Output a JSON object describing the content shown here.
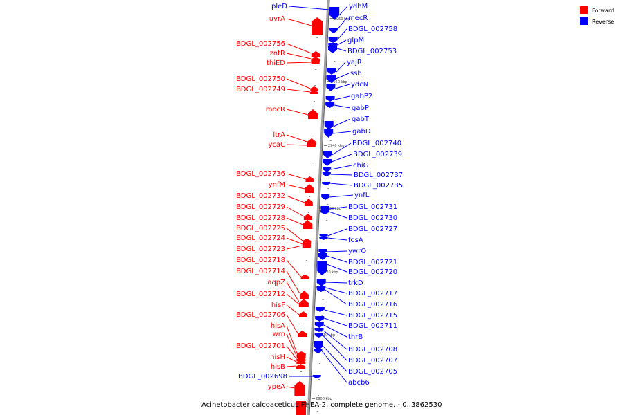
{
  "caption": "Acinetobacter calcoaceticus PHEA-2, complete genome. - 0..3862530",
  "legend": [
    {
      "label": "Forward",
      "color": "#ff0000"
    },
    {
      "label": "Reverse",
      "color": "#0000ff"
    }
  ],
  "colors": {
    "forward": "#ff0000",
    "reverse": "#0000ff",
    "backbone": "#a0a0a0"
  },
  "ticks": [
    "2960 kbp",
    "2950 kbp",
    "2940 kbp",
    "2930 kbp",
    "2920 kbp",
    "2910 kbp",
    "2900 kbp"
  ],
  "genes": {
    "forward": [
      "uvrA",
      "BDGL_002756",
      "zntR",
      "thiED",
      "BDGL_002750",
      "BDGL_002749",
      "mocR",
      "ltrA",
      "ycaC",
      "BDGL_002736",
      "ynfM",
      "BDGL_002732",
      "BDGL_002729",
      "BDGL_002728",
      "BDGL_002725",
      "BDGL_002724",
      "BDGL_002723",
      "BDGL_002718",
      "BDGL_002714",
      "aqpZ",
      "BDGL_002712",
      "hisF",
      "BDGL_002706",
      "hisA",
      "wrn",
      "BDGL_002701",
      "hisH",
      "hisB",
      "ypeA"
    ],
    "reverse": [
      "pleD",
      "ydhM",
      "mecR",
      "BDGL_002758",
      "glpM",
      "BDGL_002753",
      "yajR",
      "ssb",
      "ydcN",
      "gabP2",
      "gabP",
      "gabT",
      "gabD",
      "BDGL_002740",
      "BDGL_002739",
      "chiG",
      "BDGL_002737",
      "BDGL_002735",
      "ynfL",
      "BDGL_002731",
      "BDGL_002730",
      "BDGL_002727",
      "fosA",
      "ywrO",
      "BDGL_002721",
      "BDGL_002720",
      "trkD",
      "BDGL_002717",
      "BDGL_002716",
      "BDGL_002715",
      "BDGL_002711",
      "thrB",
      "BDGL_002708",
      "BDGL_002707",
      "BDGL_002705",
      "abcb6",
      "BDGL_002698"
    ]
  }
}
